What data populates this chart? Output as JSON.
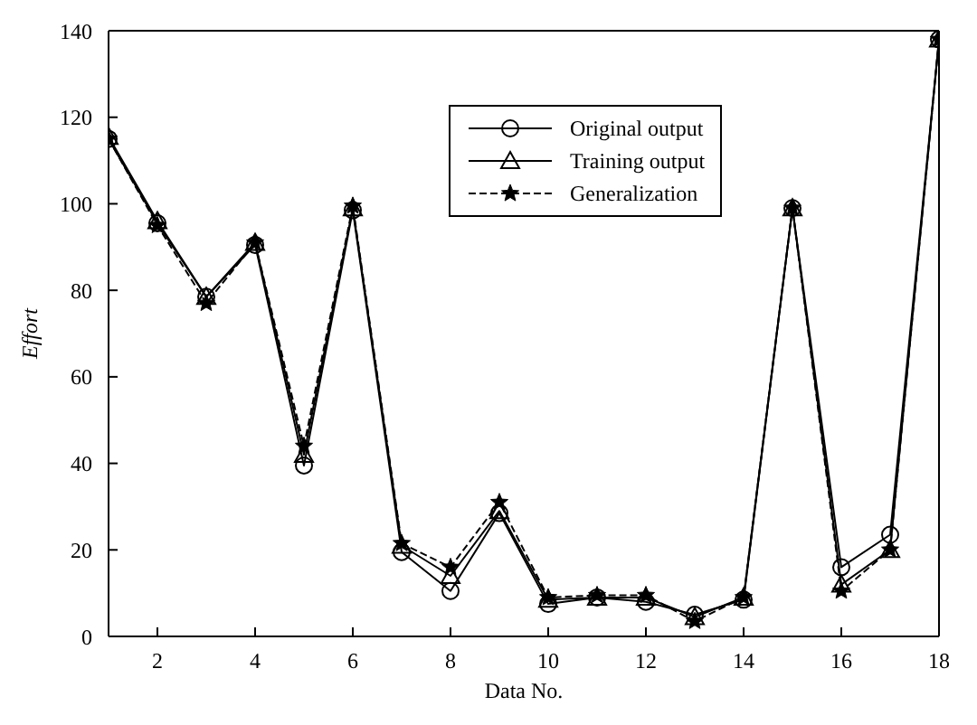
{
  "chart_data": {
    "type": "line",
    "xlabel": "Data No.",
    "ylabel": "Effort",
    "x": [
      1,
      2,
      3,
      4,
      5,
      6,
      7,
      8,
      9,
      10,
      11,
      12,
      13,
      14,
      15,
      16,
      17,
      18
    ],
    "series": [
      {
        "name": "Original output",
        "color": "#000000",
        "marker": "circle",
        "line_style": "solid",
        "values": [
          115,
          95.5,
          78.5,
          90.5,
          39.5,
          98.5,
          19.5,
          10.5,
          28.5,
          7.5,
          9,
          8,
          5,
          8.5,
          99,
          16,
          23.5,
          138
        ]
      },
      {
        "name": "Training output",
        "color": "#000000",
        "marker": "triangle",
        "line_style": "solid",
        "values": [
          115.5,
          96,
          78.5,
          91,
          42,
          99,
          21,
          14,
          29,
          8.5,
          9,
          9,
          4.5,
          9,
          99,
          12,
          20,
          138
        ]
      },
      {
        "name": "Generalization",
        "color": "#000000",
        "marker": "star",
        "line_style": "dashed",
        "values": [
          115,
          95,
          77,
          91,
          44,
          99.5,
          21.5,
          16,
          31,
          9,
          9.5,
          9.5,
          3.5,
          9,
          99,
          10.5,
          20,
          138
        ]
      }
    ],
    "xlim": [
      1,
      18
    ],
    "xticks": [
      2,
      4,
      6,
      8,
      10,
      12,
      14,
      16,
      18
    ],
    "ylim": [
      0,
      140
    ],
    "yticks": [
      0,
      20,
      40,
      60,
      80,
      100,
      120,
      140
    ],
    "grid": false,
    "legend": "top right"
  }
}
